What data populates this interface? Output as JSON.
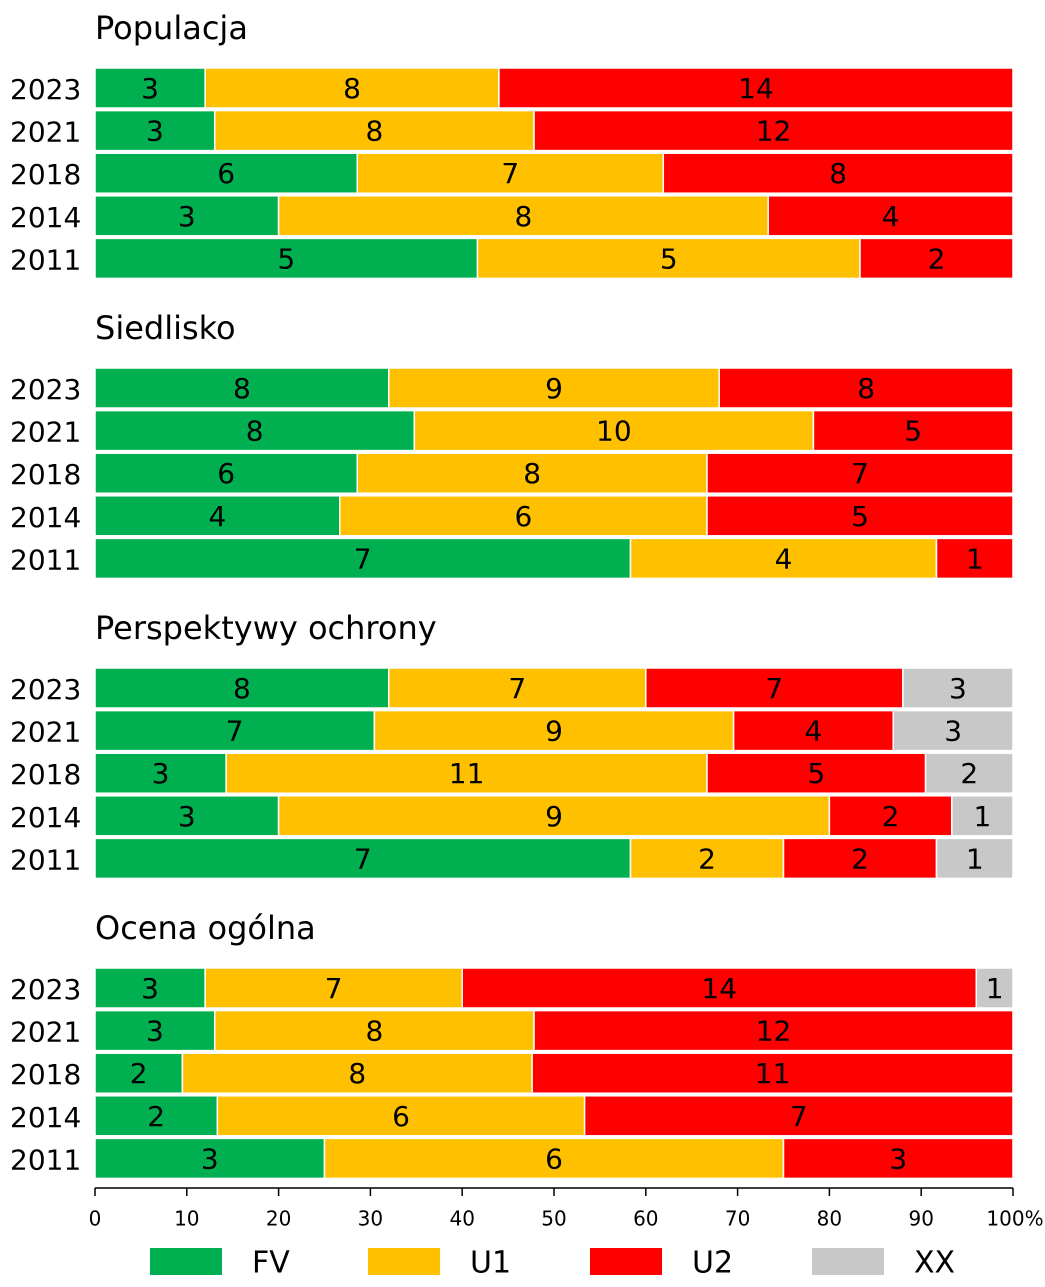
{
  "chart_data": {
    "type": "bar",
    "orientation": "horizontal",
    "stacking": "percent",
    "xlim": [
      0,
      100
    ],
    "xticks": [
      0,
      10,
      20,
      30,
      40,
      50,
      60,
      70,
      80,
      90,
      {
        "value": 100,
        "label": "100%"
      }
    ],
    "legend": "bottom",
    "series": [
      {
        "name": "FV",
        "color": "#00b050"
      },
      {
        "name": "U1",
        "color": "#ffc000"
      },
      {
        "name": "U2",
        "color": "#ff0000"
      },
      {
        "name": "XX",
        "color": "#c8c8c8"
      }
    ],
    "panels": [
      {
        "title": "Populacja",
        "categories": [
          "2023",
          "2021",
          "2018",
          "2014",
          "2011"
        ],
        "series": [
          {
            "values": [
              3,
              3,
              6,
              3,
              5
            ]
          },
          {
            "values": [
              8,
              8,
              7,
              8,
              5
            ]
          },
          {
            "values": [
              14,
              12,
              8,
              4,
              2
            ]
          }
        ]
      },
      {
        "title": "Siedlisko",
        "categories": [
          "2023",
          "2021",
          "2018",
          "2014",
          "2011"
        ],
        "series": [
          {
            "values": [
              8,
              8,
              6,
              4,
              7
            ]
          },
          {
            "values": [
              9,
              10,
              8,
              6,
              4
            ]
          },
          {
            "values": [
              8,
              5,
              7,
              5,
              1
            ]
          }
        ]
      },
      {
        "title": "Perspektywy ochrony",
        "categories": [
          "2023",
          "2021",
          "2018",
          "2014",
          "2011"
        ],
        "series": [
          {
            "values": [
              8,
              7,
              3,
              3,
              7
            ]
          },
          {
            "values": [
              7,
              9,
              11,
              9,
              2
            ]
          },
          {
            "values": [
              7,
              4,
              5,
              2,
              2
            ]
          },
          {
            "values": [
              3,
              3,
              2,
              1,
              1
            ]
          }
        ]
      },
      {
        "title": "Ocena ogólna",
        "categories": [
          "2023",
          "2021",
          "2018",
          "2014",
          "2011"
        ],
        "series": [
          {
            "values": [
              3,
              3,
              2,
              2,
              3
            ]
          },
          {
            "values": [
              7,
              8,
              8,
              6,
              6
            ]
          },
          {
            "values": [
              14,
              12,
              11,
              7,
              3
            ]
          },
          {
            "values": [
              1,
              null,
              null,
              null,
              null
            ]
          }
        ]
      }
    ]
  }
}
